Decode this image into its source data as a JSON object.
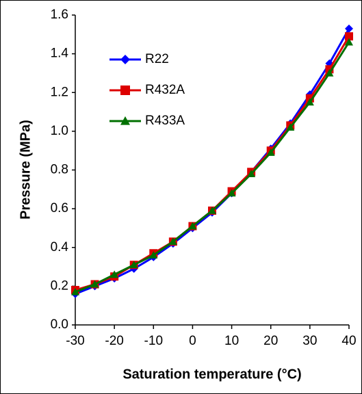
{
  "chart_data": {
    "type": "line",
    "xlabel": "Saturation temperature (°C)",
    "ylabel": "Pressure (MPa)",
    "x": [
      -30,
      -25,
      -20,
      -15,
      -10,
      -5,
      0,
      5,
      10,
      15,
      20,
      25,
      30,
      35,
      40
    ],
    "series": [
      {
        "name": "R22",
        "color": "#0000ff",
        "marker": "diamond",
        "values": [
          0.16,
          0.2,
          0.24,
          0.29,
          0.35,
          0.42,
          0.5,
          0.58,
          0.68,
          0.79,
          0.91,
          1.04,
          1.19,
          1.35,
          1.53
        ]
      },
      {
        "name": "R432A",
        "color": "#dd0000",
        "marker": "square",
        "values": [
          0.18,
          0.21,
          0.25,
          0.31,
          0.37,
          0.43,
          0.51,
          0.59,
          0.69,
          0.79,
          0.9,
          1.03,
          1.17,
          1.32,
          1.49
        ]
      },
      {
        "name": "R433A",
        "color": "#007000",
        "marker": "triangle",
        "values": [
          0.17,
          0.21,
          0.26,
          0.31,
          0.36,
          0.43,
          0.51,
          0.59,
          0.68,
          0.78,
          0.89,
          1.02,
          1.15,
          1.3,
          1.46
        ]
      }
    ],
    "xlim": [
      -30,
      40
    ],
    "xticks": [
      -30,
      -20,
      -10,
      0,
      10,
      20,
      30,
      40
    ],
    "ylim": [
      0,
      1.6
    ],
    "yticks": [
      {
        "value": 0,
        "label": "0.0"
      },
      0.2,
      0.4,
      0.6,
      0.8,
      {
        "value": 1,
        "label": "1.0"
      },
      1.2,
      1.4,
      1.6
    ],
    "legend": "upper left",
    "grid": false
  }
}
